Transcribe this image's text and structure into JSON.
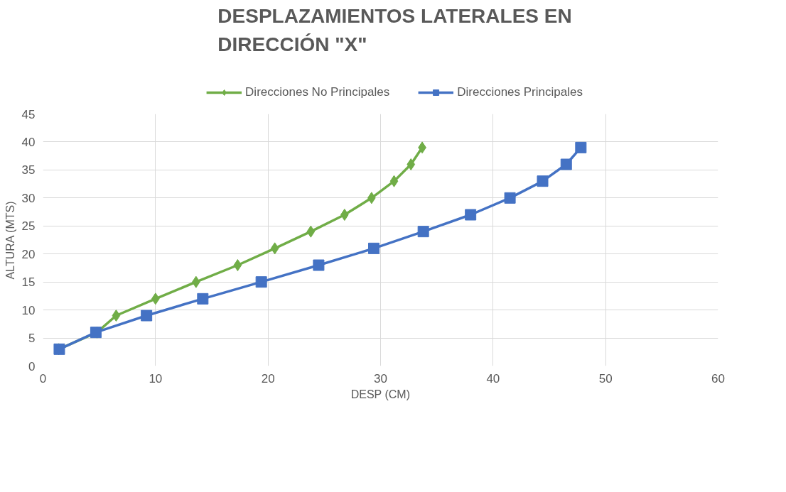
{
  "chart_data": {
    "type": "line",
    "title": "DESPLAZAMIENTOS LATERALES EN DIRECCIÓN \"X\"",
    "xlabel": "DESP (CM)",
    "ylabel": "ALTURA (MTS)",
    "xlim": [
      0,
      60
    ],
    "xticks": [
      0,
      10,
      20,
      30,
      40,
      50,
      60
    ],
    "ylim": [
      0,
      45
    ],
    "yticks": [
      0,
      5,
      10,
      15,
      20,
      25,
      30,
      35,
      40,
      45
    ],
    "grid": true,
    "legend": "top",
    "line_style": "solid",
    "series": [
      {
        "name": "Direcciones No Principales",
        "color": "#70ad47",
        "marker": "diamond",
        "x": [
          1.4,
          4.8,
          6.5,
          10.0,
          13.6,
          17.3,
          20.6,
          23.8,
          26.8,
          29.2,
          31.2,
          32.7,
          33.7
        ],
        "values": [
          3,
          6,
          9,
          12,
          15,
          18,
          21,
          24,
          27,
          30,
          33,
          36,
          39
        ]
      },
      {
        "name": "Direcciones Principales",
        "color": "#4472c4",
        "marker": "square",
        "x": [
          1.45,
          4.7,
          9.2,
          14.2,
          19.4,
          24.5,
          29.4,
          33.8,
          38.0,
          41.5,
          44.4,
          46.5,
          47.8
        ],
        "values": [
          3,
          6,
          9,
          12,
          15,
          18,
          21,
          24,
          27,
          30,
          33,
          36,
          39
        ]
      }
    ]
  }
}
